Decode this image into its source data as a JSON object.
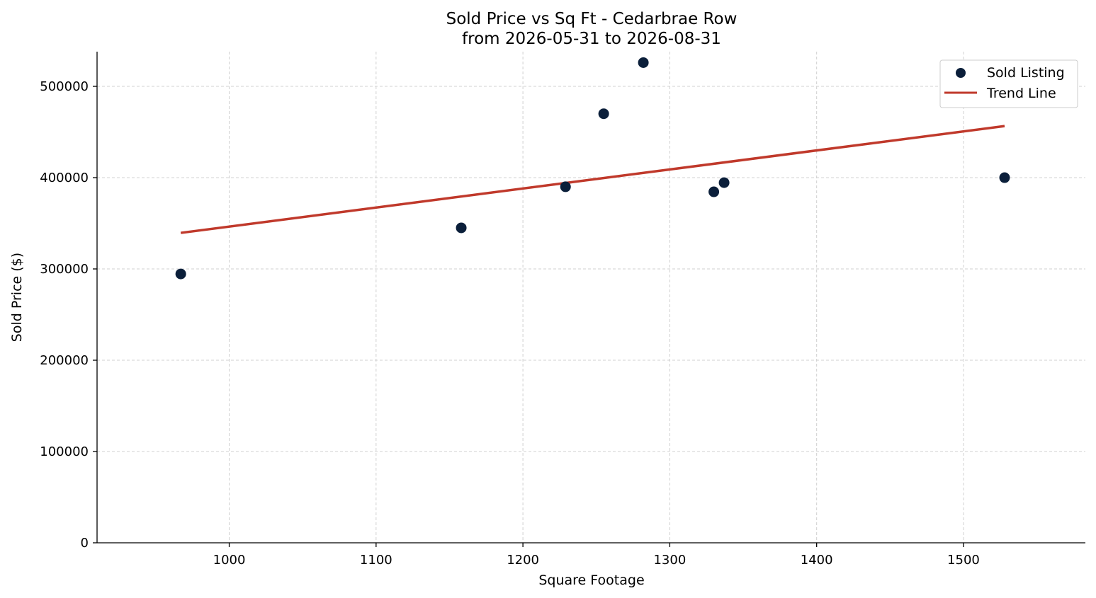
{
  "chart_data": {
    "type": "scatter",
    "title": "Sold Price vs Sq Ft - Cedarbrae Row",
    "subtitle": "from 2026-05-31 to 2026-08-31",
    "xlabel": "Square Footage",
    "ylabel": "Sold Price ($)",
    "xlim": [
      910,
      1583
    ],
    "ylim": [
      0,
      538000
    ],
    "x_ticks": [
      1000,
      1100,
      1200,
      1300,
      1400,
      1500
    ],
    "y_ticks": [
      0,
      100000,
      200000,
      300000,
      400000,
      500000
    ],
    "x_tick_labels": [
      "1000",
      "1100",
      "1200",
      "1300",
      "1400",
      "1500"
    ],
    "y_tick_labels": [
      "0",
      "100000",
      "200000",
      "300000",
      "400000",
      "500000"
    ],
    "grid": true,
    "legend_position": "top-right",
    "series": [
      {
        "name": "Sold Listing",
        "kind": "scatter",
        "color": "#0b1f3a",
        "points": [
          {
            "x": 967,
            "y": 294500
          },
          {
            "x": 1158,
            "y": 345000
          },
          {
            "x": 1229,
            "y": 390000
          },
          {
            "x": 1255,
            "y": 470000
          },
          {
            "x": 1282,
            "y": 526000
          },
          {
            "x": 1330,
            "y": 384500
          },
          {
            "x": 1337,
            "y": 394500
          },
          {
            "x": 1528,
            "y": 400000
          }
        ]
      },
      {
        "name": "Trend Line",
        "kind": "line",
        "color": "#c0392b",
        "points": [
          {
            "x": 967,
            "y": 339500
          },
          {
            "x": 1528,
            "y": 456500
          }
        ]
      }
    ]
  }
}
